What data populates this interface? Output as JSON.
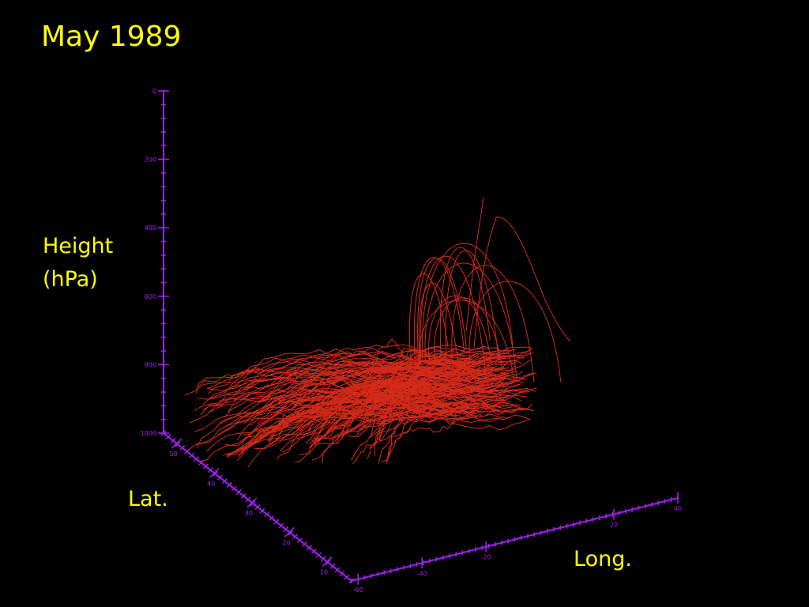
{
  "slide": {
    "title": "May 1989",
    "labels": {
      "height": "Height",
      "height_unit": "(hPa)",
      "lat": "Lat.",
      "long": "Long."
    },
    "height_axis": {
      "lim": [
        0,
        1000
      ],
      "ticks": [
        0,
        200,
        400,
        600,
        800,
        1000
      ]
    },
    "lat_axis": {
      "ticks": [
        50,
        40,
        30,
        20,
        10
      ]
    },
    "long_axis": {
      "ticks": [
        -60,
        -40,
        -20,
        20,
        40
      ]
    }
  }
}
